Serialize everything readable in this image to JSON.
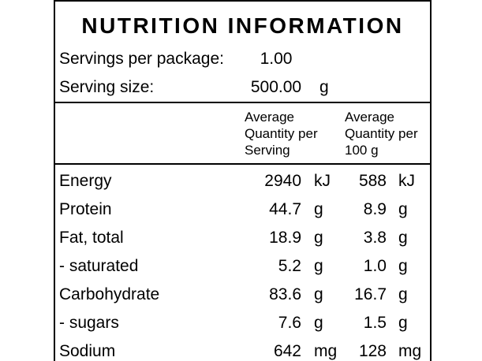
{
  "label": {
    "title": "NUTRITION INFORMATION",
    "serving_info": [
      {
        "label": "Servings per package:",
        "value": "1.00",
        "unit": ""
      },
      {
        "label": "Serving size:",
        "value": "500.00",
        "unit": "g"
      }
    ],
    "column_headers": {
      "per_serving": "Average Quantity per Serving",
      "per_100g": "Average Quantity per 100 g"
    },
    "nutrients": [
      {
        "name": "Energy",
        "per_serving": "2940",
        "per_serving_unit": "kJ",
        "per_100g": "588",
        "per_100g_unit": "kJ"
      },
      {
        "name": "Protein",
        "per_serving": "44.7",
        "per_serving_unit": "g",
        "per_100g": "8.9",
        "per_100g_unit": "g"
      },
      {
        "name": "Fat, total",
        "per_serving": "18.9",
        "per_serving_unit": "g",
        "per_100g": "3.8",
        "per_100g_unit": "g"
      },
      {
        "name": "- saturated",
        "per_serving": "5.2",
        "per_serving_unit": "g",
        "per_100g": "1.0",
        "per_100g_unit": "g"
      },
      {
        "name": "Carbohydrate",
        "per_serving": "83.6",
        "per_serving_unit": "g",
        "per_100g": "16.7",
        "per_100g_unit": "g"
      },
      {
        "name": "- sugars",
        "per_serving": "7.6",
        "per_serving_unit": "g",
        "per_100g": "1.5",
        "per_100g_unit": "g"
      },
      {
        "name": "Sodium",
        "per_serving": "642",
        "per_serving_unit": "mg",
        "per_100g": "128",
        "per_100g_unit": "mg"
      }
    ]
  }
}
